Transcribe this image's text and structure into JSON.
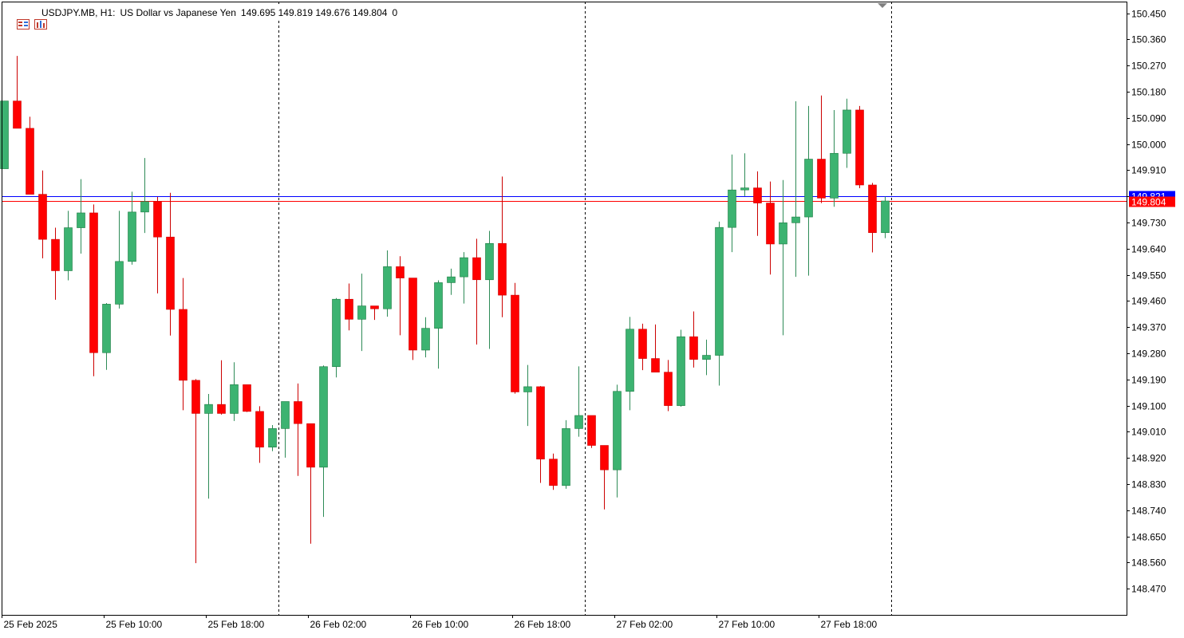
{
  "header": {
    "symbol": "USDJPY.MB, H1:",
    "description": "US Dollar vs Japanese Yen",
    "ohlc": "149.695 149.819 149.676 149.804",
    "tick_volume": "0",
    "icons": [
      "trade-panel-icon",
      "chart-properties-icon"
    ]
  },
  "colors": {
    "bull": "#3CB371",
    "bear": "#FF0000",
    "bull_border": "#1a7a40",
    "bear_border": "#cc0000",
    "wick_bull": "#2e8b57",
    "wick_bear": "#cc0000",
    "ask_line": "#0000ff",
    "bid_line": "#ff0000",
    "axis": "#000000",
    "separator": "#000000"
  },
  "price_tags": {
    "ask": "149.821",
    "bid": "149.804"
  },
  "chart_data": {
    "type": "candlestick",
    "timeframe": "H1",
    "ylim": [
      148.38,
      150.49
    ],
    "y_ticks": [
      "150.450",
      "150.360",
      "150.270",
      "150.180",
      "150.090",
      "150.000",
      "149.910",
      "149.820",
      "149.730",
      "149.640",
      "149.550",
      "149.460",
      "149.370",
      "149.280",
      "149.190",
      "149.100",
      "149.010",
      "148.920",
      "148.830",
      "148.740",
      "148.650",
      "148.560",
      "148.470"
    ],
    "y_tick_values": [
      150.45,
      150.36,
      150.27,
      150.18,
      150.09,
      150.0,
      149.91,
      149.82,
      149.73,
      149.64,
      149.55,
      149.46,
      149.37,
      149.28,
      149.19,
      149.1,
      149.01,
      148.92,
      148.83,
      148.74,
      148.65,
      148.56,
      148.47
    ],
    "x_labels": [
      {
        "index": 0,
        "label": "25 Feb 2025"
      },
      {
        "index": 8,
        "label": "25 Feb 10:00"
      },
      {
        "index": 16,
        "label": "25 Feb 18:00"
      },
      {
        "index": 24,
        "label": "26 Feb 02:00"
      },
      {
        "index": 32,
        "label": "26 Feb 10:00"
      },
      {
        "index": 40,
        "label": "26 Feb 18:00"
      },
      {
        "index": 48,
        "label": "27 Feb 02:00"
      },
      {
        "index": 56,
        "label": "27 Feb 10:00"
      },
      {
        "index": 64,
        "label": "27 Feb 18:00"
      }
    ],
    "day_separators_after_index": [
      21.5,
      45.5,
      69.5
    ],
    "ask": 149.821,
    "bid": 149.804,
    "candles": [
      {
        "o": 149.915,
        "h": 150.148,
        "l": 149.915,
        "c": 150.148
      },
      {
        "o": 150.148,
        "h": 150.303,
        "l": 150.054,
        "c": 150.054
      },
      {
        "o": 150.054,
        "h": 150.094,
        "l": 149.827,
        "c": 149.827
      },
      {
        "o": 149.827,
        "h": 149.909,
        "l": 149.607,
        "c": 149.672
      },
      {
        "o": 149.672,
        "h": 149.712,
        "l": 149.464,
        "c": 149.564
      },
      {
        "o": 149.564,
        "h": 149.77,
        "l": 149.531,
        "c": 149.712
      },
      {
        "o": 149.712,
        "h": 149.879,
        "l": 149.623,
        "c": 149.763
      },
      {
        "o": 149.763,
        "h": 149.792,
        "l": 149.201,
        "c": 149.282
      },
      {
        "o": 149.282,
        "h": 149.453,
        "l": 149.223,
        "c": 149.449
      },
      {
        "o": 149.449,
        "h": 149.77,
        "l": 149.434,
        "c": 149.596
      },
      {
        "o": 149.596,
        "h": 149.836,
        "l": 149.585,
        "c": 149.766
      },
      {
        "o": 149.766,
        "h": 149.952,
        "l": 149.694,
        "c": 149.802
      },
      {
        "o": 149.802,
        "h": 149.818,
        "l": 149.486,
        "c": 149.68
      },
      {
        "o": 149.68,
        "h": 149.832,
        "l": 149.341,
        "c": 149.431
      },
      {
        "o": 149.431,
        "h": 149.539,
        "l": 149.084,
        "c": 149.187
      },
      {
        "o": 149.187,
        "h": 149.191,
        "l": 148.558,
        "c": 149.073
      },
      {
        "o": 149.073,
        "h": 149.14,
        "l": 148.78,
        "c": 149.104
      },
      {
        "o": 149.104,
        "h": 149.256,
        "l": 149.069,
        "c": 149.073
      },
      {
        "o": 149.073,
        "h": 149.249,
        "l": 149.047,
        "c": 149.172
      },
      {
        "o": 149.172,
        "h": 149.172,
        "l": 149.078,
        "c": 149.08
      },
      {
        "o": 149.08,
        "h": 149.098,
        "l": 148.903,
        "c": 148.957
      },
      {
        "o": 148.957,
        "h": 149.033,
        "l": 148.943,
        "c": 149.021
      },
      {
        "o": 149.021,
        "h": 149.114,
        "l": 148.921,
        "c": 149.114
      },
      {
        "o": 149.114,
        "h": 149.176,
        "l": 148.858,
        "c": 149.038
      },
      {
        "o": 149.038,
        "h": 149.038,
        "l": 148.625,
        "c": 148.888
      },
      {
        "o": 148.888,
        "h": 149.238,
        "l": 148.717,
        "c": 149.234
      },
      {
        "o": 149.234,
        "h": 149.47,
        "l": 149.197,
        "c": 149.466
      },
      {
        "o": 149.466,
        "h": 149.52,
        "l": 149.359,
        "c": 149.397
      },
      {
        "o": 149.397,
        "h": 149.554,
        "l": 149.288,
        "c": 149.443
      },
      {
        "o": 149.443,
        "h": 149.44,
        "l": 149.395,
        "c": 149.433
      },
      {
        "o": 149.433,
        "h": 149.634,
        "l": 149.406,
        "c": 149.578
      },
      {
        "o": 149.578,
        "h": 149.614,
        "l": 149.342,
        "c": 149.539
      },
      {
        "o": 149.539,
        "h": 149.539,
        "l": 149.257,
        "c": 149.291
      },
      {
        "o": 149.291,
        "h": 149.404,
        "l": 149.266,
        "c": 149.366
      },
      {
        "o": 149.366,
        "h": 149.531,
        "l": 149.227,
        "c": 149.523
      },
      {
        "o": 149.523,
        "h": 149.571,
        "l": 149.481,
        "c": 149.543
      },
      {
        "o": 149.543,
        "h": 149.628,
        "l": 149.451,
        "c": 149.609
      },
      {
        "o": 149.609,
        "h": 149.674,
        "l": 149.31,
        "c": 149.533
      },
      {
        "o": 149.533,
        "h": 149.701,
        "l": 149.295,
        "c": 149.658
      },
      {
        "o": 149.658,
        "h": 149.888,
        "l": 149.404,
        "c": 149.48
      },
      {
        "o": 149.48,
        "h": 149.522,
        "l": 149.141,
        "c": 149.147
      },
      {
        "o": 149.147,
        "h": 149.24,
        "l": 149.03,
        "c": 149.165
      },
      {
        "o": 149.165,
        "h": 149.167,
        "l": 148.834,
        "c": 148.916
      },
      {
        "o": 148.916,
        "h": 148.935,
        "l": 148.81,
        "c": 148.825
      },
      {
        "o": 148.825,
        "h": 149.05,
        "l": 148.814,
        "c": 149.021
      },
      {
        "o": 149.021,
        "h": 149.235,
        "l": 148.993,
        "c": 149.066
      },
      {
        "o": 149.066,
        "h": 149.066,
        "l": 148.954,
        "c": 148.963
      },
      {
        "o": 148.963,
        "h": 148.963,
        "l": 148.743,
        "c": 148.879
      },
      {
        "o": 148.879,
        "h": 149.172,
        "l": 148.784,
        "c": 149.149
      },
      {
        "o": 149.149,
        "h": 149.405,
        "l": 149.084,
        "c": 149.363
      },
      {
        "o": 149.363,
        "h": 149.382,
        "l": 149.222,
        "c": 149.262
      },
      {
        "o": 149.262,
        "h": 149.379,
        "l": 149.217,
        "c": 149.215
      },
      {
        "o": 149.215,
        "h": 149.257,
        "l": 149.081,
        "c": 149.1
      },
      {
        "o": 149.1,
        "h": 149.361,
        "l": 149.096,
        "c": 149.337
      },
      {
        "o": 149.337,
        "h": 149.424,
        "l": 149.231,
        "c": 149.259
      },
      {
        "o": 149.259,
        "h": 149.327,
        "l": 149.205,
        "c": 149.273
      },
      {
        "o": 149.273,
        "h": 149.733,
        "l": 149.169,
        "c": 149.713
      },
      {
        "o": 149.713,
        "h": 149.964,
        "l": 149.628,
        "c": 149.842
      },
      {
        "o": 149.842,
        "h": 149.968,
        "l": 149.821,
        "c": 149.849
      },
      {
        "o": 149.849,
        "h": 149.906,
        "l": 149.684,
        "c": 149.797
      },
      {
        "o": 149.797,
        "h": 149.871,
        "l": 149.551,
        "c": 149.656
      },
      {
        "o": 149.656,
        "h": 149.876,
        "l": 149.342,
        "c": 149.729
      },
      {
        "o": 149.729,
        "h": 150.147,
        "l": 149.543,
        "c": 149.749
      },
      {
        "o": 149.749,
        "h": 150.131,
        "l": 149.547,
        "c": 149.948
      },
      {
        "o": 149.948,
        "h": 150.167,
        "l": 149.797,
        "c": 149.814
      },
      {
        "o": 149.814,
        "h": 150.117,
        "l": 149.784,
        "c": 149.968
      },
      {
        "o": 149.968,
        "h": 150.156,
        "l": 149.918,
        "c": 150.117
      },
      {
        "o": 150.117,
        "h": 150.131,
        "l": 149.848,
        "c": 149.859
      },
      {
        "o": 149.859,
        "h": 149.866,
        "l": 149.627,
        "c": 149.695
      },
      {
        "o": 149.695,
        "h": 149.819,
        "l": 149.676,
        "c": 149.804
      }
    ]
  }
}
